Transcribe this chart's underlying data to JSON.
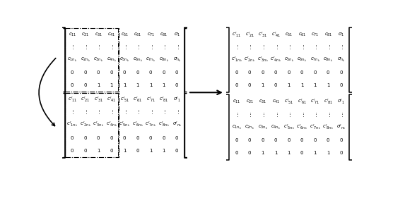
{
  "bg": "#ffffff",
  "fs": 5.0,
  "mat_tl": {
    "rows": [
      [
        "c_{11}",
        "c_{21}",
        "c_{31}",
        "c_{41}",
        "c_{51}",
        "c_{61}",
        "c_{71}",
        "c_{81}",
        "\\sigma_1"
      ],
      [
        "\\vdots",
        "\\vdots",
        "\\vdots",
        "\\vdots",
        "\\vdots",
        "\\vdots",
        "\\vdots",
        "\\vdots",
        "\\vdots"
      ],
      [
        "c_{1n_k}",
        "c_{2n_k}",
        "c_{3n_k}",
        "c_{4n_k}",
        "c_{5n_k}",
        "c_{6n_k}",
        "c_{7n_k}",
        "c_{8n_k}",
        "\\sigma_{n_k}"
      ],
      [
        "0",
        "0",
        "0",
        "0",
        "0",
        "0",
        "0",
        "0",
        "0"
      ],
      [
        "0",
        "0",
        "1",
        "1",
        "1",
        "1",
        "1",
        "1",
        "0"
      ]
    ]
  },
  "mat_bl": {
    "rows": [
      [
        "c'_{11}",
        "c'_{21}",
        "c'_{31}",
        "c'_{41}",
        "c'_{51}",
        "c'_{61}",
        "c'_{71}",
        "c'_{81}",
        "\\sigma'_1"
      ],
      [
        "\\vdots",
        "\\vdots",
        "\\vdots",
        "\\vdots",
        "\\vdots",
        "\\vdots",
        "\\vdots",
        "\\vdots",
        "\\vdots"
      ],
      [
        "c'_{1n_k}",
        "c'_{2n_k}",
        "c'_{3n_k}",
        "c'_{4n_k}",
        "c'_{5n_k}",
        "c'_{6n_k}",
        "c'_{7n_k}",
        "c'_{8n_k}",
        "\\sigma'_{n_k}"
      ],
      [
        "0",
        "0",
        "0",
        "0",
        "0",
        "0",
        "0",
        "0",
        "0"
      ],
      [
        "0",
        "0",
        "1",
        "0",
        "1",
        "0",
        "1",
        "1",
        "0"
      ]
    ]
  },
  "mat_tr": {
    "rows": [
      [
        "c'_{11}",
        "c'_{21}",
        "c'_{31}",
        "c'_{41}",
        "c_{51}",
        "c_{61}",
        "c_{71}",
        "c_{81}",
        "\\sigma_1"
      ],
      [
        "\\vdots",
        "\\vdots",
        "\\vdots",
        "\\vdots",
        "\\vdots",
        "\\vdots",
        "\\vdots",
        "\\vdots",
        "\\vdots"
      ],
      [
        "c'_{1n_k}",
        "c'_{2n_k}",
        "c'_{3n_k}",
        "c'_{4n_k}",
        "c_{5n_k}",
        "c_{6n_k}",
        "c_{7n_k}",
        "c_{8n_k}",
        "\\sigma_{n_k}"
      ],
      [
        "0",
        "0",
        "0",
        "0",
        "0",
        "0",
        "0",
        "0",
        "0"
      ],
      [
        "0",
        "0",
        "1",
        "0",
        "1",
        "1",
        "1",
        "1",
        "0"
      ]
    ]
  },
  "mat_br": {
    "rows": [
      [
        "c_{11}",
        "c_{21}",
        "c_{31}",
        "c_{41}",
        "c'_{51}",
        "c'_{61}",
        "c'_{71}",
        "c'_{81}",
        "\\sigma'_1"
      ],
      [
        "\\vdots",
        "\\vdots",
        "\\vdots",
        "\\vdots",
        "\\vdots",
        "\\vdots",
        "\\vdots",
        "\\vdots",
        "\\vdots"
      ],
      [
        "c_{1n_k}",
        "c_{2n_k}",
        "c_{3n_k}",
        "c_{4n_k}",
        "c'_{5n_k}",
        "c'_{6n_k}",
        "c'_{7n_k}",
        "c'_{8n_k}",
        "\\sigma'_{n_k}"
      ],
      [
        "0",
        "0",
        "0",
        "0",
        "0",
        "0",
        "0",
        "0",
        "0"
      ],
      [
        "0",
        "0",
        "1",
        "1",
        "1",
        "0",
        "1",
        "1",
        "0"
      ]
    ]
  }
}
